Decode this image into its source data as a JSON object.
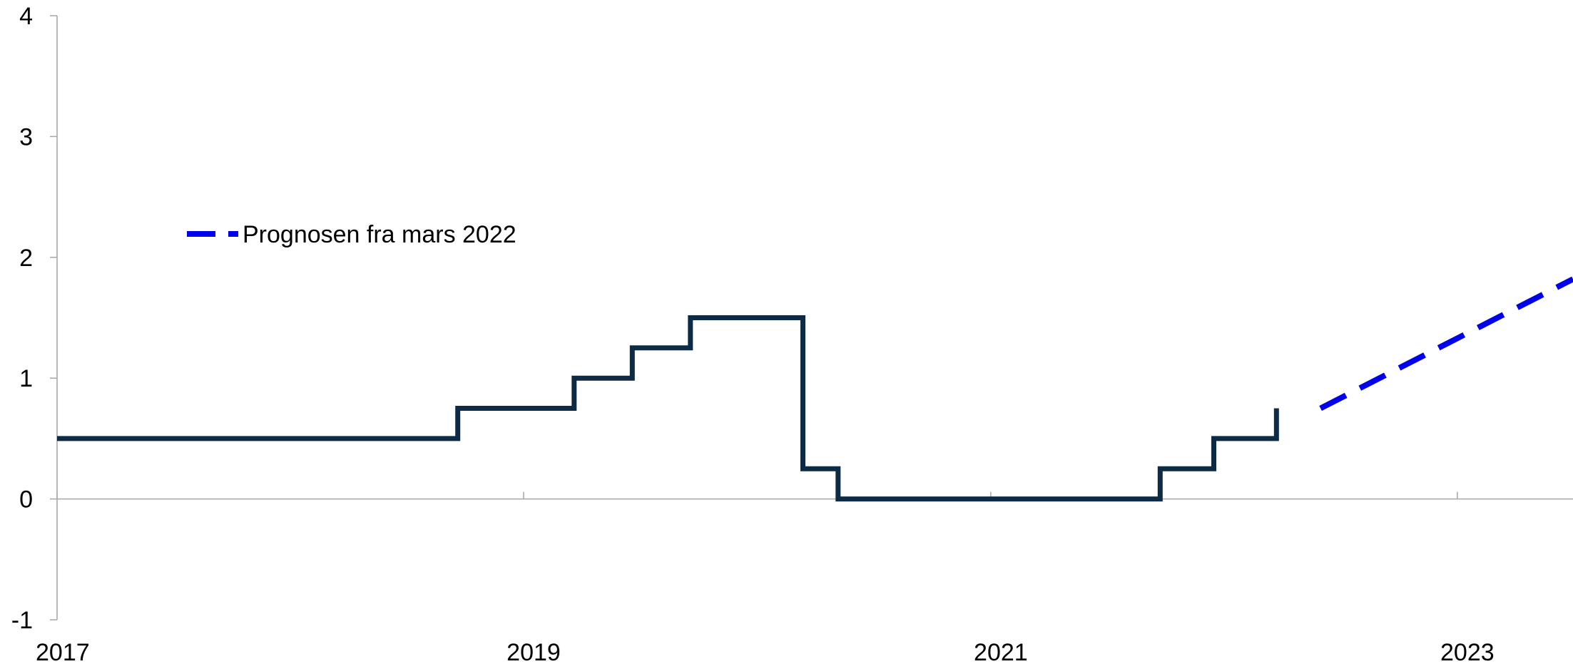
{
  "chart_data": {
    "type": "line",
    "title": "",
    "xlabel": "",
    "ylabel": "",
    "xlim": [
      "2017-01-01",
      "2023-07-01"
    ],
    "ylim": [
      -1,
      4
    ],
    "x_ticks": [
      "2017-01-01",
      "2019-01-01",
      "2021-01-01",
      "2023-01-01"
    ],
    "x_tick_labels": [
      "2017",
      "2019",
      "2021",
      "2023"
    ],
    "y_ticks": [
      -1,
      0,
      1,
      2,
      3,
      4
    ],
    "y_tick_labels": [
      "-1",
      "0",
      "1",
      "2",
      "3",
      "4"
    ],
    "grid": false,
    "legend_position": "left",
    "series": [
      {
        "name": "",
        "style": "step",
        "color": "#0d2b45",
        "points": [
          [
            "2017-01-01",
            0.5
          ],
          [
            "2018-09-20",
            0.5
          ],
          [
            "2018-09-20",
            0.75
          ],
          [
            "2019-03-21",
            0.75
          ],
          [
            "2019-03-21",
            1.0
          ],
          [
            "2019-06-20",
            1.0
          ],
          [
            "2019-06-20",
            1.25
          ],
          [
            "2019-09-19",
            1.25
          ],
          [
            "2019-09-19",
            1.5
          ],
          [
            "2020-03-13",
            1.5
          ],
          [
            "2020-03-13",
            0.25
          ],
          [
            "2020-05-07",
            0.25
          ],
          [
            "2020-05-07",
            0.0
          ],
          [
            "2021-09-23",
            0.0
          ],
          [
            "2021-09-23",
            0.25
          ],
          [
            "2021-12-16",
            0.25
          ],
          [
            "2021-12-16",
            0.5
          ],
          [
            "2022-03-24",
            0.5
          ],
          [
            "2022-03-24",
            0.75
          ]
        ]
      },
      {
        "name": "Prognosen fra mars 2022",
        "style": "dashed",
        "color": "#0000ee",
        "points": [
          [
            "2022-06-01",
            0.75
          ],
          [
            "2023-07-01",
            1.82
          ]
        ]
      }
    ]
  }
}
